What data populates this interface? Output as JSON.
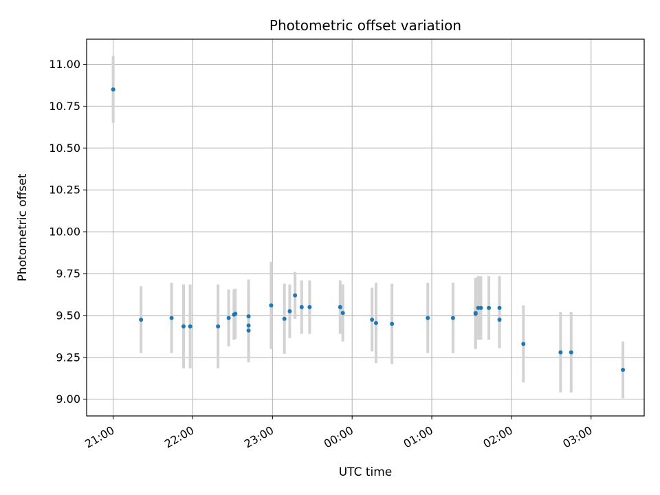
{
  "chart_data": {
    "type": "scatter",
    "title": "Photometric offset variation",
    "xlabel": "UTC time",
    "ylabel": "Photometric offset",
    "xlim": [
      "20:40",
      "27:40"
    ],
    "ylim": [
      8.9,
      11.15
    ],
    "x_ticks": [
      "21:00",
      "22:00",
      "23:00",
      "00:00",
      "01:00",
      "02:00",
      "03:00"
    ],
    "y_ticks": [
      "9.00",
      "9.25",
      "9.50",
      "9.75",
      "10.00",
      "10.25",
      "10.50",
      "10.75",
      "11.00"
    ],
    "grid": true,
    "colors": {
      "point": "#1f77b4",
      "errorbar": "#d3d3d3",
      "grid": "#b0b0b0"
    },
    "points": [
      {
        "t": "21:00",
        "y": 10.85,
        "err": 0.2
      },
      {
        "t": "21:21",
        "y": 9.475,
        "err": 0.2
      },
      {
        "t": "21:44",
        "y": 9.485,
        "err": 0.21
      },
      {
        "t": "21:53",
        "y": 9.435,
        "err": 0.25
      },
      {
        "t": "21:58",
        "y": 9.435,
        "err": 0.25
      },
      {
        "t": "22:19",
        "y": 9.435,
        "err": 0.25
      },
      {
        "t": "22:27",
        "y": 9.485,
        "err": 0.17
      },
      {
        "t": "22:31",
        "y": 9.505,
        "err": 0.15
      },
      {
        "t": "22:32",
        "y": 9.51,
        "err": 0.15
      },
      {
        "t": "22:42",
        "y": 9.495,
        "err": 0.22
      },
      {
        "t": "22:42",
        "y": 9.44,
        "err": 0.2
      },
      {
        "t": "22:42",
        "y": 9.41,
        "err": 0.19
      },
      {
        "t": "22:59",
        "y": 9.56,
        "err": 0.26
      },
      {
        "t": "23:09",
        "y": 9.48,
        "err": 0.21
      },
      {
        "t": "23:13",
        "y": 9.525,
        "err": 0.16
      },
      {
        "t": "23:17",
        "y": 9.62,
        "err": 0.14
      },
      {
        "t": "23:22",
        "y": 9.55,
        "err": 0.16
      },
      {
        "t": "23:28",
        "y": 9.55,
        "err": 0.16
      },
      {
        "t": "23:51",
        "y": 9.55,
        "err": 0.16
      },
      {
        "t": "23:53",
        "y": 9.515,
        "err": 0.17
      },
      {
        "t": "24:15",
        "y": 9.475,
        "err": 0.19
      },
      {
        "t": "24:18",
        "y": 9.455,
        "err": 0.24
      },
      {
        "t": "24:30",
        "y": 9.45,
        "err": 0.24
      },
      {
        "t": "24:57",
        "y": 9.485,
        "err": 0.21
      },
      {
        "t": "25:16",
        "y": 9.485,
        "err": 0.21
      },
      {
        "t": "25:33",
        "y": 9.51,
        "err": 0.21
      },
      {
        "t": "25:33",
        "y": 9.515,
        "err": 0.21
      },
      {
        "t": "25:35",
        "y": 9.545,
        "err": 0.19
      },
      {
        "t": "25:37",
        "y": 9.545,
        "err": 0.19
      },
      {
        "t": "25:43",
        "y": 9.545,
        "err": 0.19
      },
      {
        "t": "25:51",
        "y": 9.545,
        "err": 0.19
      },
      {
        "t": "25:51",
        "y": 9.475,
        "err": 0.17
      },
      {
        "t": "26:09",
        "y": 9.33,
        "err": 0.23
      },
      {
        "t": "26:37",
        "y": 9.28,
        "err": 0.24
      },
      {
        "t": "26:45",
        "y": 9.28,
        "err": 0.24
      },
      {
        "t": "27:24",
        "y": 9.175,
        "err": 0.17
      }
    ]
  }
}
